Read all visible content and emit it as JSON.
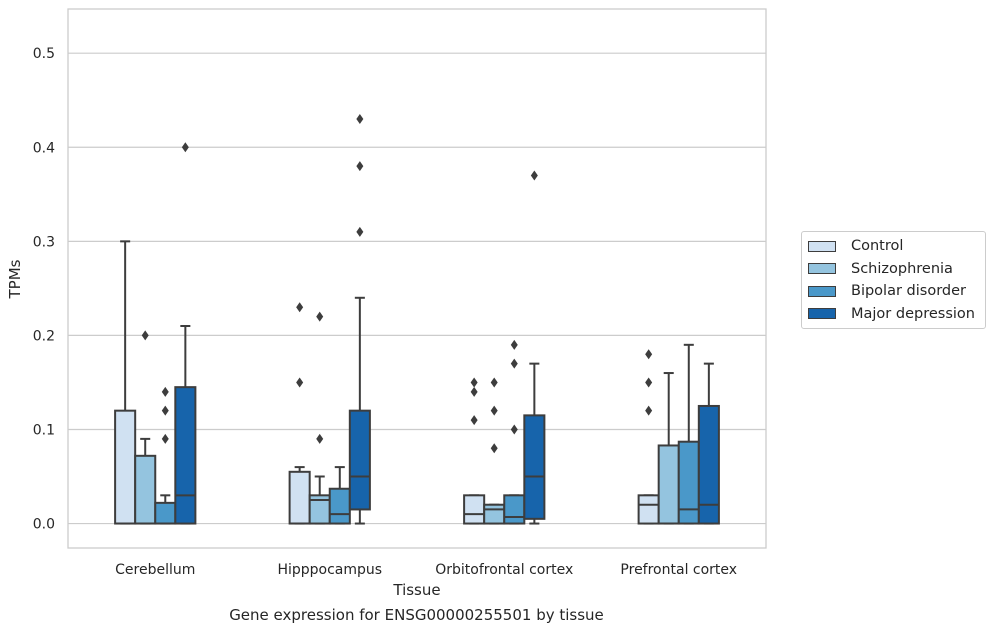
{
  "chart_data": {
    "type": "box",
    "title": "",
    "xlabel": "Tissue",
    "ylabel": "TPMs",
    "caption": "Gene expression for ENSG00000255501 by tissue",
    "ylim": [
      -0.026,
      0.547
    ],
    "yticks": [
      0.0,
      0.1,
      0.2,
      0.3,
      0.4,
      0.5
    ],
    "ytick_labels": [
      "0.0",
      "0.1",
      "0.2",
      "0.3",
      "0.4",
      "0.5"
    ],
    "grid": true,
    "legend_placement": "right",
    "categories": [
      "Cerebellum",
      "Hipppocampus",
      "Orbitofrontal cortex",
      "Prefrontal cortex"
    ],
    "series": [
      {
        "name": "Control",
        "color": "#d0e1f2",
        "boxes": [
          {
            "min": 0.0,
            "q1": 0.0,
            "median": 0.0,
            "q3": 0.12,
            "max": 0.3,
            "outliers": []
          },
          {
            "min": 0.0,
            "q1": 0.0,
            "median": 0.0,
            "q3": 0.055,
            "max": 0.06,
            "outliers": [
              0.23,
              0.15
            ]
          },
          {
            "min": 0.0,
            "q1": 0.0,
            "median": 0.01,
            "q3": 0.03,
            "max": 0.03,
            "outliers": [
              0.15,
              0.14,
              0.11
            ]
          },
          {
            "min": 0.0,
            "q1": 0.0,
            "median": 0.02,
            "q3": 0.03,
            "max": 0.03,
            "outliers": [
              0.18,
              0.15,
              0.12
            ]
          }
        ]
      },
      {
        "name": "Schizophrenia",
        "color": "#94c4df",
        "boxes": [
          {
            "min": 0.0,
            "q1": 0.0,
            "median": 0.0,
            "q3": 0.072,
            "max": 0.09,
            "outliers": [
              0.2
            ]
          },
          {
            "min": 0.0,
            "q1": 0.0,
            "median": 0.025,
            "q3": 0.03,
            "max": 0.05,
            "outliers": [
              0.22,
              0.09
            ]
          },
          {
            "min": 0.0,
            "q1": 0.0,
            "median": 0.015,
            "q3": 0.02,
            "max": 0.02,
            "outliers": [
              0.15,
              0.12,
              0.08
            ]
          },
          {
            "min": 0.0,
            "q1": 0.0,
            "median": 0.0,
            "q3": 0.083,
            "max": 0.16,
            "outliers": []
          }
        ]
      },
      {
        "name": "Bipolar disorder",
        "color": "#4a98c9",
        "boxes": [
          {
            "min": 0.0,
            "q1": 0.0,
            "median": 0.0,
            "q3": 0.022,
            "max": 0.03,
            "outliers": [
              0.14,
              0.12,
              0.09
            ]
          },
          {
            "min": 0.0,
            "q1": 0.0,
            "median": 0.01,
            "q3": 0.037,
            "max": 0.06,
            "outliers": []
          },
          {
            "min": 0.0,
            "q1": 0.0,
            "median": 0.007,
            "q3": 0.03,
            "max": 0.03,
            "outliers": [
              0.19,
              0.17,
              0.1
            ]
          },
          {
            "min": 0.0,
            "q1": 0.0,
            "median": 0.015,
            "q3": 0.087,
            "max": 0.19,
            "outliers": []
          }
        ]
      },
      {
        "name": "Major depression",
        "color": "#1764ab",
        "boxes": [
          {
            "min": 0.0,
            "q1": 0.0,
            "median": 0.03,
            "q3": 0.145,
            "max": 0.21,
            "outliers": [
              0.4
            ]
          },
          {
            "min": 0.0,
            "q1": 0.015,
            "median": 0.05,
            "q3": 0.12,
            "max": 0.24,
            "outliers": [
              0.43,
              0.38,
              0.31
            ]
          },
          {
            "min": 0.0,
            "q1": 0.005,
            "median": 0.05,
            "q3": 0.115,
            "max": 0.17,
            "outliers": [
              0.37
            ]
          },
          {
            "min": 0.0,
            "q1": 0.0,
            "median": 0.02,
            "q3": 0.125,
            "max": 0.17,
            "outliers": []
          }
        ]
      }
    ]
  }
}
